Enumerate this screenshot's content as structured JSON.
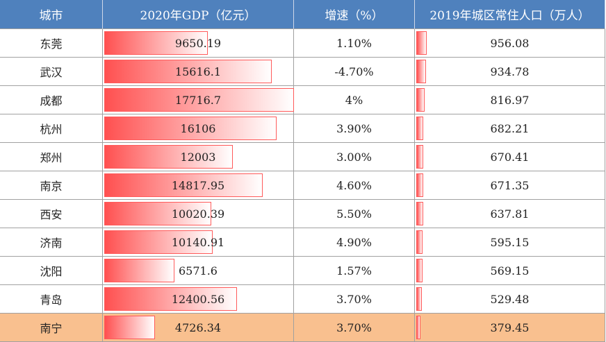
{
  "table": {
    "header": [
      "城市",
      "2020年GDP（亿元）",
      "增速（%）",
      "2019年城区常住人口（万人）"
    ],
    "rows": [
      [
        "东莞",
        9650.19,
        "1.10%",
        956.08
      ],
      [
        "武汉",
        15616.1,
        "-4.70%",
        934.78
      ],
      [
        "成都",
        17716.7,
        "4%",
        816.97
      ],
      [
        "杭州",
        16106,
        "3.90%",
        682.21
      ],
      [
        "郑州",
        12003,
        "3.00%",
        670.41
      ],
      [
        "南京",
        14817.95,
        "4.60%",
        671.35
      ],
      [
        "西安",
        10020.39,
        "5.50%",
        637.81
      ],
      [
        "济南",
        10140.91,
        "4.90%",
        595.15
      ],
      [
        "沈阳",
        6571.6,
        "1.57%",
        569.15
      ],
      [
        "青岛",
        12400.56,
        "3.70%",
        529.48
      ],
      [
        "南宁",
        4726.34,
        "3.70%",
        379.45
      ]
    ]
  }
}
